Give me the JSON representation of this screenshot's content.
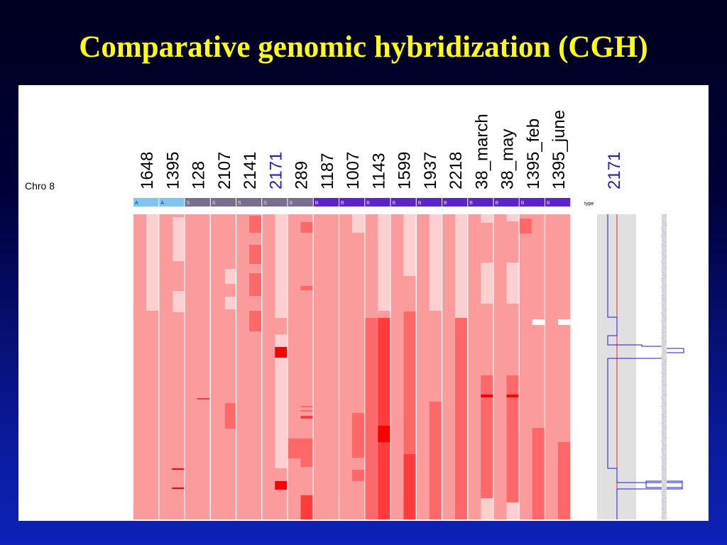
{
  "slide": {
    "title": "Comparative genomic hybridization (CGH)"
  },
  "figure": {
    "chromosome_label": "Chro 8",
    "type_label": "type",
    "samples": [
      {
        "label": "1648",
        "type": "A",
        "highlight": false
      },
      {
        "label": "1395",
        "type": "A",
        "highlight": false
      },
      {
        "label": "128",
        "type": "S",
        "highlight": false
      },
      {
        "label": "2107",
        "type": "S",
        "highlight": false
      },
      {
        "label": "2141",
        "type": "S",
        "highlight": false
      },
      {
        "label": "2171",
        "type": "S",
        "highlight": true
      },
      {
        "label": "289",
        "type": "S",
        "highlight": false
      },
      {
        "label": "1187",
        "type": "B",
        "highlight": false
      },
      {
        "label": "1007",
        "type": "B",
        "highlight": false
      },
      {
        "label": "1143",
        "type": "B",
        "highlight": false
      },
      {
        "label": "1599",
        "type": "B",
        "highlight": false
      },
      {
        "label": "1937",
        "type": "B",
        "highlight": false
      },
      {
        "label": "2218",
        "type": "B",
        "highlight": false
      },
      {
        "label": "38_march",
        "type": "B",
        "highlight": false
      },
      {
        "label": "38_may",
        "type": "B",
        "highlight": false
      },
      {
        "label": "1395_feb",
        "type": "B",
        "highlight": false
      },
      {
        "label": "1395_june",
        "type": "B",
        "highlight": false
      }
    ],
    "profile_label": "2171",
    "colors": {
      "type_A": "#7ec6f0",
      "type_S": "#7a6e8e",
      "type_B": "#5a22d0",
      "base": "#fb9b9b",
      "light": "#fdd0d0",
      "medium": "#ff6868",
      "strong": "#ff3b3b",
      "intense": "#ff0000",
      "highlight_label": "#1a1ae0"
    }
  }
}
